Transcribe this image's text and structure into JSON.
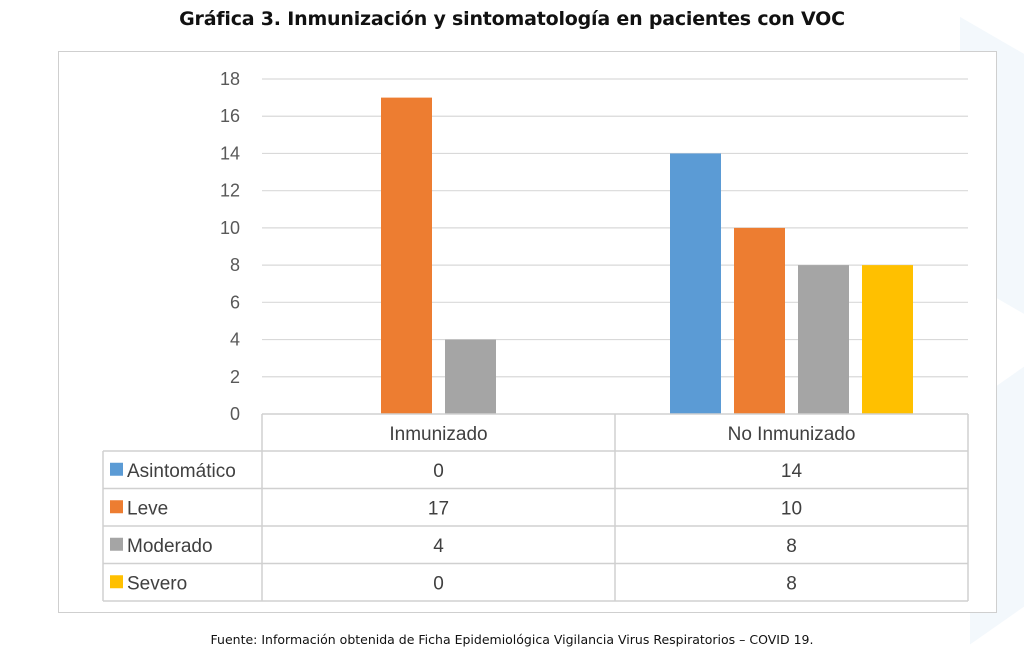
{
  "chart_data": {
    "type": "bar",
    "title": "Gráfica 3. Inmunización y sintomatología en pacientes con VOC",
    "xlabel": "",
    "ylabel": "",
    "categories": [
      "Inmunizado",
      "No Inmunizado"
    ],
    "series": [
      {
        "name": "Asintomático",
        "values": [
          0,
          14
        ],
        "color": "#5b9bd5"
      },
      {
        "name": "Leve",
        "values": [
          17,
          10
        ],
        "color": "#ed7d31"
      },
      {
        "name": "Moderado",
        "values": [
          4,
          8
        ],
        "color": "#a5a5a5"
      },
      {
        "name": "Severo",
        "values": [
          0,
          8
        ],
        "color": "#ffc000"
      }
    ],
    "ylim": [
      0,
      18
    ],
    "yticks": [
      "0",
      "2",
      "4",
      "6",
      "8",
      "10",
      "12",
      "14",
      "16",
      "18"
    ],
    "grid": true,
    "legend": "data-table-below",
    "data_table": true
  },
  "source_note": "Fuente: Información obtenida de Ficha Epidemiológica Vigilancia Virus Respiratorios – COVID 19."
}
